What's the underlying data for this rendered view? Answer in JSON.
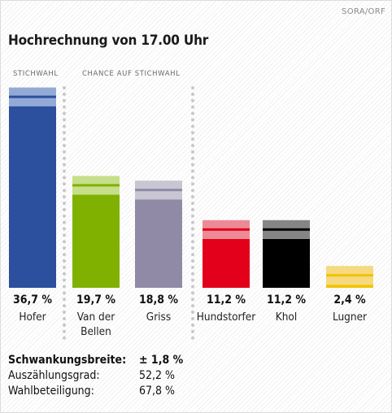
{
  "source": "SORA/ORF",
  "title": "Hochrechnung von 17.00 Uhr",
  "captions": {
    "runoff": "STICHWAHL",
    "chance": "CHANCE AUF STICHWAHL"
  },
  "chart_data": {
    "type": "bar",
    "title": "Hochrechnung von 17.00 Uhr",
    "ylim": [
      0,
      40
    ],
    "grid": false,
    "categories": [
      "Hofer",
      "Van der Bellen",
      "Griss",
      "Hundstorfer",
      "Khol",
      "Lugner"
    ],
    "name_lines": [
      [
        "Hofer"
      ],
      [
        "Van der",
        "Bellen"
      ],
      [
        "Griss"
      ],
      [
        "Hundstorfer"
      ],
      [
        "Khol"
      ],
      [
        "Lugner"
      ]
    ],
    "values": [
      36.7,
      19.7,
      18.8,
      11.2,
      11.2,
      2.4
    ],
    "value_labels": [
      "36,7 %",
      "19,7 %",
      "18,8 %",
      "11,2 %",
      "11,2 %",
      "2,4 %"
    ],
    "margin_of_error": 1.8,
    "colors": [
      "#2c4f9e",
      "#80b100",
      "#918aa6",
      "#e2001a",
      "#000000",
      "#f2c300"
    ],
    "band_colors": [
      "#94aad6",
      "#c7df8a",
      "#c9c6d3",
      "#ec8b96",
      "#858585",
      "#f5da80"
    ]
  },
  "stats": [
    {
      "label": "Schwankungsbreite:",
      "value": "± 1,8 %",
      "bold": true
    },
    {
      "label": "Auszählungsgrad:",
      "value": "52,2 %",
      "bold": false
    },
    {
      "label": "Wahlbeteiligung:",
      "value": "67,8 %",
      "bold": false
    }
  ]
}
